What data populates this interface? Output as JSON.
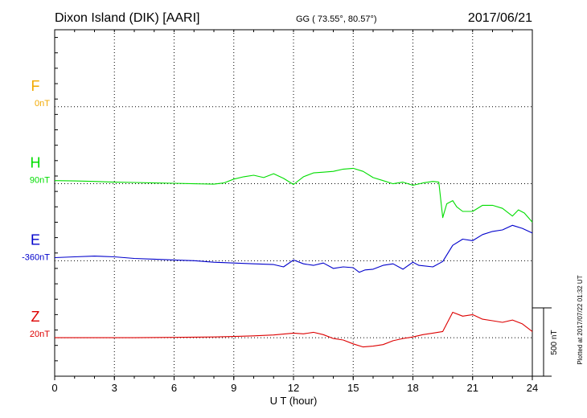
{
  "header": {
    "station": "Dixon Island (DIK)  [AARI]",
    "coords": "GG ( 73.55°,  80.57°)",
    "date": "2017/06/21"
  },
  "footer_note": "Plotted at 2017/07/22 01:32 UT",
  "scale_bar": {
    "label": "500 nT",
    "value_nT": 500
  },
  "chart_data": {
    "type": "line",
    "xlabel": "U T (hour)",
    "xlim": [
      0,
      24
    ],
    "xticks": [
      "0",
      "3",
      "6",
      "9",
      "12",
      "15",
      "18",
      "21",
      "24"
    ],
    "grid": true,
    "ylim_nT": [
      -1750,
      500
    ],
    "series": [
      {
        "name": "F",
        "baseline_label": "0nT",
        "offset_nT": 0,
        "color": "#f2a900",
        "x": [],
        "y": []
      },
      {
        "name": "H",
        "baseline_label": "90nT",
        "offset_nT": -500,
        "color": "#00dd00",
        "x": [
          0,
          1,
          2,
          3,
          4,
          5,
          6,
          7,
          8,
          8.5,
          9,
          9.5,
          10,
          10.5,
          11,
          11.5,
          12,
          12.5,
          13,
          13.5,
          14,
          14.5,
          15,
          15.5,
          16,
          16.5,
          17,
          17.5,
          18,
          18.5,
          19,
          19.3,
          19.5,
          19.7,
          20,
          20.2,
          20.5,
          21,
          21.5,
          22,
          22.5,
          23,
          23.3,
          23.6,
          24
        ],
        "y": [
          20,
          18,
          15,
          10,
          8,
          5,
          3,
          0,
          -3,
          5,
          30,
          45,
          55,
          40,
          65,
          35,
          -5,
          45,
          70,
          75,
          80,
          95,
          100,
          80,
          40,
          20,
          0,
          10,
          -10,
          5,
          15,
          10,
          -220,
          -130,
          -110,
          -150,
          -180,
          -180,
          -140,
          -140,
          -160,
          -210,
          -170,
          -190,
          -250
        ]
      },
      {
        "name": "E",
        "baseline_label": "-360nT",
        "offset_nT": -1000,
        "color": "#0000cc",
        "x": [
          0,
          1,
          2,
          3,
          4,
          5,
          6,
          7,
          8,
          9,
          10,
          11,
          11.5,
          12,
          12.5,
          13,
          13.5,
          14,
          14.5,
          15,
          15.3,
          15.6,
          16,
          16.5,
          17,
          17.5,
          18,
          18.3,
          19,
          19.5,
          20,
          20.5,
          21,
          21.5,
          22,
          22.5,
          23,
          23.5,
          24
        ],
        "y": [
          20,
          25,
          30,
          25,
          15,
          10,
          5,
          0,
          -10,
          -15,
          -20,
          -25,
          -40,
          5,
          -20,
          -30,
          -15,
          -50,
          -40,
          -45,
          -75,
          -60,
          -55,
          -30,
          -20,
          -55,
          -10,
          -30,
          -40,
          -5,
          100,
          140,
          130,
          170,
          190,
          200,
          230,
          210,
          180
        ]
      },
      {
        "name": "Z",
        "baseline_label": "20nT",
        "offset_nT": -1500,
        "color": "#dd0000",
        "x": [
          0,
          2,
          4,
          6,
          8,
          9,
          10,
          11,
          12,
          12.5,
          13,
          13.5,
          14,
          14.5,
          15,
          15.5,
          16,
          16.5,
          17,
          17.5,
          18,
          18.5,
          19,
          19.5,
          20,
          20.5,
          21,
          21.5,
          22,
          22.5,
          23,
          23.5,
          24
        ],
        "y": [
          0,
          0,
          0,
          2,
          5,
          8,
          12,
          18,
          30,
          25,
          35,
          20,
          -5,
          -15,
          -40,
          -60,
          -55,
          -45,
          -20,
          -5,
          5,
          20,
          30,
          40,
          165,
          140,
          150,
          120,
          110,
          100,
          115,
          90,
          40
        ]
      }
    ]
  }
}
